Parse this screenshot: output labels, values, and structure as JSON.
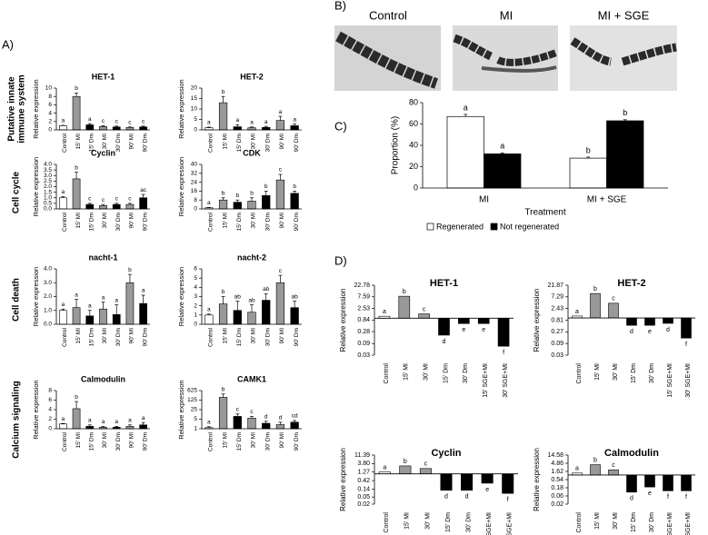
{
  "figure": {
    "panel_labels": [
      "A)",
      "B)",
      "C)",
      "D)"
    ],
    "row_labels": [
      "Putative innate",
      "immune system",
      "Cell cycle",
      "Cell death",
      "Calcium signaling"
    ],
    "image_labels": [
      "Control",
      "MI",
      "MI + SGE"
    ]
  },
  "chart_data": [
    {
      "type": "bar",
      "title": "HET-1",
      "ylabel": "Relative expression",
      "categories": [
        "Control",
        "15' MI",
        "15' Dm",
        "30' MI",
        "30' Dm",
        "90' MI",
        "90' Dm"
      ],
      "values": [
        1,
        8,
        1.2,
        0.8,
        0.7,
        0.6,
        0.7
      ],
      "errors": [
        0.1,
        0.8,
        0.3,
        0.2,
        0.2,
        0.1,
        0.2
      ],
      "letters": [
        "a",
        "b",
        "a",
        "c",
        "c",
        "c",
        "c"
      ],
      "colors": [
        "#ffffff",
        "#999999",
        "#000000",
        "#999999",
        "#000000",
        "#999999",
        "#000000"
      ],
      "ylim": [
        0,
        10
      ],
      "yticks": [
        0,
        2,
        4,
        6,
        8,
        10
      ]
    },
    {
      "type": "bar",
      "title": "HET-2",
      "ylabel": "Relative expression",
      "categories": [
        "Control",
        "15' MI",
        "15' Dm",
        "30' MI",
        "30' Dm",
        "90' MI",
        "90' Dm"
      ],
      "values": [
        1,
        13,
        1.5,
        1,
        1.2,
        4.5,
        2
      ],
      "errors": [
        0.3,
        3,
        1,
        0.4,
        0.5,
        2,
        0.8
      ],
      "letters": [
        "a",
        "b",
        "a",
        "a",
        "a",
        "a",
        "a"
      ],
      "colors": [
        "#ffffff",
        "#999999",
        "#000000",
        "#999999",
        "#000000",
        "#999999",
        "#000000"
      ],
      "ylim": [
        0,
        20
      ],
      "yticks": [
        0,
        5,
        10,
        15,
        20
      ]
    },
    {
      "type": "bar",
      "title": "Cyclin",
      "ylabel": "Relative expression",
      "categories": [
        "Control",
        "15' MI",
        "15' Dm",
        "30' MI",
        "30' Dm",
        "90' MI",
        "90' Dm"
      ],
      "values": [
        1,
        2.7,
        0.4,
        0.3,
        0.4,
        0.4,
        1.0
      ],
      "errors": [
        0.1,
        0.6,
        0.1,
        0.1,
        0.1,
        0.1,
        0.3
      ],
      "letters": [
        "a",
        "b",
        "c",
        "c",
        "c",
        "c",
        "ac"
      ],
      "colors": [
        "#ffffff",
        "#999999",
        "#000000",
        "#999999",
        "#000000",
        "#999999",
        "#000000"
      ],
      "ylim": [
        0,
        4
      ],
      "yticks": [
        {
          "value": 0,
          "label": "0.0"
        },
        0.5,
        {
          "value": 1,
          "label": "1.0"
        },
        1.5,
        {
          "value": 2,
          "label": "2.0"
        },
        2.5,
        {
          "value": 3,
          "label": "3.0"
        },
        3.5,
        {
          "value": 4,
          "label": "4.0"
        }
      ]
    },
    {
      "type": "bar",
      "title": "CDK",
      "ylabel": "Relative expression",
      "categories": [
        "Control",
        "15' MI",
        "15' Dm",
        "30' MI",
        "30' Dm",
        "90' MI",
        "90' Dm"
      ],
      "values": [
        1,
        8,
        6,
        7,
        12,
        26,
        14
      ],
      "errors": [
        0.3,
        2,
        2,
        3,
        4,
        5,
        2
      ],
      "letters": [
        "a",
        "b",
        "b",
        "b",
        "b",
        "c",
        "b"
      ],
      "colors": [
        "#ffffff",
        "#999999",
        "#000000",
        "#999999",
        "#000000",
        "#999999",
        "#000000"
      ],
      "ylim": [
        0,
        40
      ],
      "yticks": [
        0,
        8,
        16,
        24,
        32,
        40
      ]
    },
    {
      "type": "bar",
      "title": "nacht-1",
      "ylabel": "Relative expression",
      "categories": [
        "Control",
        "15' MI",
        "15' Dm",
        "30' MI",
        "30' Dm",
        "90' MI",
        "90' Dm"
      ],
      "values": [
        1,
        1.2,
        0.6,
        1.1,
        0.7,
        3,
        1.5
      ],
      "errors": [
        0.1,
        0.6,
        0.4,
        0.5,
        0.7,
        0.6,
        0.6
      ],
      "letters": [
        "a",
        "a",
        "a",
        "a",
        "a",
        "b",
        "a"
      ],
      "colors": [
        "#ffffff",
        "#999999",
        "#000000",
        "#999999",
        "#000000",
        "#999999",
        "#000000"
      ],
      "ylim": [
        0,
        4
      ],
      "yticks": [
        {
          "value": 0,
          "label": "0.0"
        },
        {
          "value": 1,
          "label": "1.0"
        },
        {
          "value": 2,
          "label": "2.0"
        },
        {
          "value": 3,
          "label": "3.0"
        },
        {
          "value": 4,
          "label": "4.0"
        }
      ]
    },
    {
      "type": "bar",
      "title": "nacht-2",
      "ylabel": "Relative expression",
      "categories": [
        "Control",
        "15' MI",
        "15' Dm",
        "30' MI",
        "30' Dm",
        "90' MI",
        "90' Dm"
      ],
      "values": [
        1,
        2.2,
        1.5,
        1.3,
        2.6,
        4.5,
        1.8
      ],
      "errors": [
        0.1,
        0.8,
        1,
        0.8,
        0.7,
        0.8,
        0.7
      ],
      "letters": [
        "a",
        "b",
        "ab",
        "ab",
        "ab",
        "c",
        "ab"
      ],
      "colors": [
        "#ffffff",
        "#999999",
        "#000000",
        "#999999",
        "#000000",
        "#999999",
        "#000000"
      ],
      "ylim": [
        0,
        6
      ],
      "yticks": [
        0,
        1,
        2,
        3,
        4,
        5,
        6
      ]
    },
    {
      "type": "bar",
      "title": "Calmodulin",
      "ylabel": "Relative expression",
      "categories": [
        "Control",
        "15' MI",
        "15' Dm",
        "30' MI",
        "30' Dm",
        "90' MI",
        "90' Dm"
      ],
      "values": [
        1,
        4.2,
        0.5,
        0.3,
        0.3,
        0.5,
        0.8
      ],
      "errors": [
        0.1,
        1.5,
        0.3,
        0.2,
        0.2,
        0.3,
        0.5
      ],
      "letters": [
        "a",
        "b",
        "a",
        "a",
        "a",
        "a",
        "a"
      ],
      "colors": [
        "#ffffff",
        "#999999",
        "#000000",
        "#999999",
        "#000000",
        "#999999",
        "#000000"
      ],
      "ylim": [
        0,
        8
      ],
      "yticks": [
        0,
        2,
        4,
        6,
        8
      ]
    },
    {
      "type": "bar",
      "title": "CAMK1",
      "ylabel": "Relative expression",
      "log_scale": true,
      "categories": [
        "Control",
        "15' MI",
        "15' Dm",
        "30' MI",
        "30' Dm",
        "90' MI",
        "90' Dm"
      ],
      "values": [
        1.2,
        200,
        8,
        6,
        2.5,
        2,
        3
      ],
      "errors": [
        0.2,
        150,
        4,
        2,
        1,
        1,
        1
      ],
      "letters": [
        "a",
        "b",
        "c",
        "c",
        "d",
        "d",
        "cd"
      ],
      "colors": [
        "#ffffff",
        "#999999",
        "#000000",
        "#999999",
        "#000000",
        "#999999",
        "#000000"
      ],
      "ylim": [
        1,
        625
      ],
      "yticks": [
        1,
        5,
        25,
        125,
        625
      ]
    },
    {
      "type": "grouped_bar",
      "ylabel": "Proportion (%)",
      "xlabel": "Treatment",
      "categories": [
        "MI",
        "MI + SGE"
      ],
      "series": [
        {
          "name": "Regenerated",
          "color": "#ffffff",
          "values": [
            67,
            28
          ],
          "errors": [
            2,
            1
          ],
          "letters": [
            "a",
            "b"
          ]
        },
        {
          "name": "Not regenerated",
          "color": "#000000",
          "values": [
            32,
            63
          ],
          "errors": [
            1,
            1
          ],
          "letters": [
            "a",
            "b"
          ]
        }
      ],
      "ylim": [
        0,
        80
      ],
      "yticks": [
        0,
        20,
        40,
        60,
        80
      ],
      "legend": "bottom"
    },
    {
      "type": "bar",
      "title": "HET-1",
      "ylabel": "Relative expression",
      "log_scale": true,
      "categories": [
        "Control",
        "15' MI",
        "30' MI",
        "15' Dm",
        "30' Dm",
        "15' SGE+MI",
        "30' SGE+MI"
      ],
      "values": [
        1.2,
        8,
        1.5,
        0.2,
        0.6,
        0.6,
        0.07
      ],
      "letters": [
        "a",
        "b",
        "c",
        "d",
        "e",
        "e",
        "f"
      ],
      "colors": [
        "#ffffff",
        "#999999",
        "#999999",
        "#000000",
        "#000000",
        "#000000",
        "#000000"
      ],
      "ylim": [
        0.03,
        22.78
      ],
      "yticks": [
        22.78,
        7.59,
        2.53,
        0.84,
        0.28,
        0.09,
        0.03
      ]
    },
    {
      "type": "bar",
      "title": "HET-2",
      "ylabel": "Relative expression",
      "log_scale": true,
      "categories": [
        "Control",
        "15' MI",
        "30' MI",
        "15' Dm",
        "30' Dm",
        "15' SGE+MI",
        "30' SGE+MI"
      ],
      "values": [
        1.2,
        10,
        4,
        0.5,
        0.5,
        0.6,
        0.15
      ],
      "letters": [
        "a",
        "b",
        "c",
        "d",
        "e",
        "d",
        "f"
      ],
      "colors": [
        "#ffffff",
        "#999999",
        "#999999",
        "#000000",
        "#000000",
        "#000000",
        "#000000"
      ],
      "ylim": [
        0.03,
        21.87
      ],
      "yticks": [
        21.87,
        7.29,
        2.43,
        0.81,
        0.27,
        0.09,
        0.03
      ]
    },
    {
      "type": "bar",
      "title": "Cyclin",
      "ylabel": "Relative expression",
      "log_scale": true,
      "categories": [
        "Control",
        "15' MI",
        "30' MI",
        "15' Dm",
        "30' Dm",
        "15' SGE+MI",
        "30' SGE+MI"
      ],
      "values": [
        1.3,
        2.8,
        2,
        0.12,
        0.12,
        0.3,
        0.08
      ],
      "letters": [
        "a",
        "b",
        "c",
        "d",
        "d",
        "e",
        "f"
      ],
      "colors": [
        "#ffffff",
        "#999999",
        "#999999",
        "#000000",
        "#000000",
        "#000000",
        "#000000"
      ],
      "ylim": [
        0.02,
        11.39
      ],
      "yticks": [
        11.39,
        {
          "value": 3.8,
          "label": "3.80"
        },
        1.27,
        0.42,
        0.14,
        0.05,
        0.02
      ]
    },
    {
      "type": "bar",
      "title": "Calmodulin",
      "ylabel": "Relative expression",
      "log_scale": true,
      "categories": [
        "Control",
        "15' MI",
        "30' MI",
        "15' Dm",
        "30' Dm",
        "15' SGE+MI",
        "30' SGE+MI"
      ],
      "values": [
        1.3,
        4,
        2,
        0.1,
        0.2,
        0.12,
        0.12
      ],
      "letters": [
        "a",
        "b",
        "c",
        "d",
        "e",
        "f",
        "f"
      ],
      "colors": [
        "#ffffff",
        "#999999",
        "#999999",
        "#000000",
        "#000000",
        "#000000",
        "#000000"
      ],
      "ylim": [
        0.02,
        14.58
      ],
      "yticks": [
        14.58,
        4.86,
        1.62,
        0.54,
        0.18,
        0.06,
        0.02
      ]
    }
  ]
}
